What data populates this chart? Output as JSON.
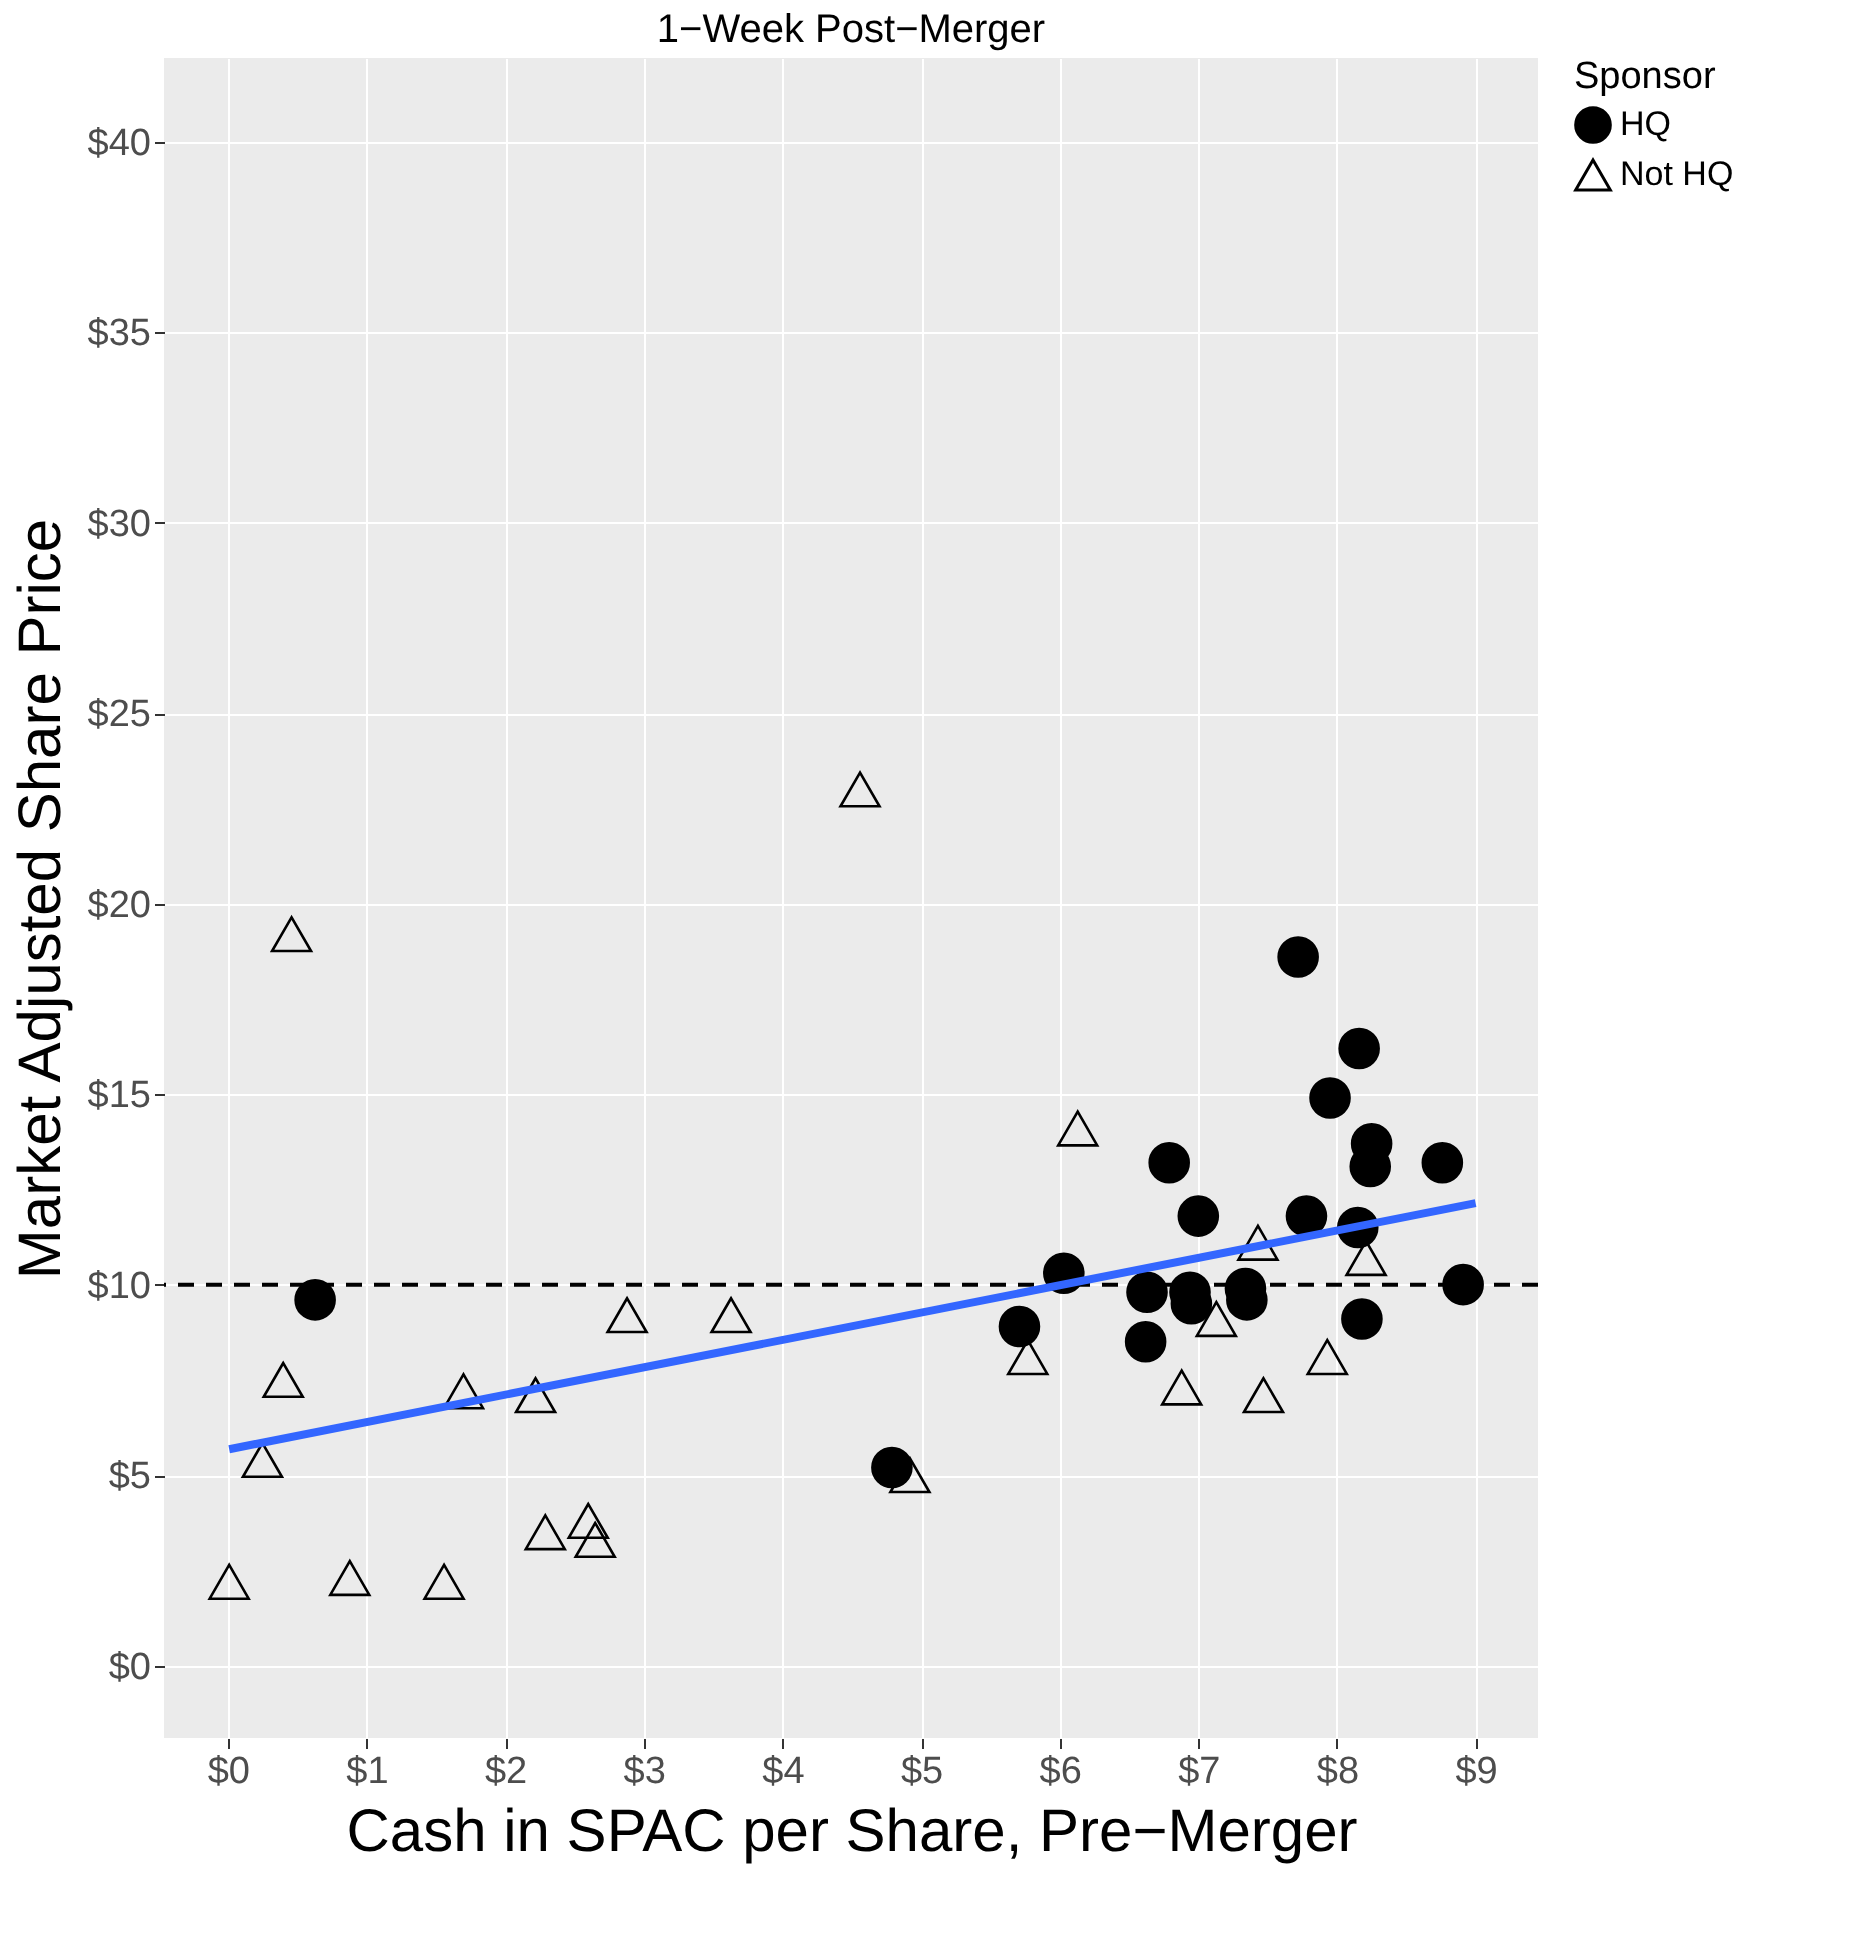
{
  "chart_data": {
    "type": "scatter",
    "title": "1−Week Post−Merger",
    "xlabel": "Cash in SPAC per Share, Pre−Merger",
    "ylabel": "Market Adjusted Share Price",
    "legend_title": "Sponsor",
    "series": [
      {
        "name": "HQ",
        "color": "#000000",
        "marker": "circle",
        "x": [
          0.63,
          4.79,
          5.71,
          6.03,
          6.62,
          6.63,
          6.79,
          6.94,
          6.95,
          7.0,
          7.34,
          7.35,
          7.72,
          7.78,
          7.95,
          8.16,
          8.15,
          8.18,
          8.25,
          8.24,
          8.76,
          8.91
        ],
        "values": [
          9.6,
          5.2,
          8.9,
          10.3,
          8.5,
          9.8,
          13.2,
          9.8,
          9.5,
          11.8,
          9.9,
          9.6,
          18.6,
          11.8,
          14.9,
          16.2,
          11.5,
          9.1,
          13.7,
          13.1,
          13.2,
          10.0
        ]
      },
      {
        "name": "Not HQ",
        "color": "#000000",
        "marker": "triangle",
        "x": [
          0.01,
          0.25,
          0.4,
          0.46,
          0.88,
          1.56,
          1.7,
          2.22,
          2.29,
          2.6,
          2.65,
          2.88,
          3.63,
          4.56,
          4.92,
          5.77,
          6.13,
          6.88,
          7.13,
          7.43,
          7.47,
          7.93,
          8.21
        ],
        "values": [
          2.2,
          5.4,
          7.5,
          19.2,
          2.3,
          2.2,
          7.2,
          7.1,
          3.5,
          3.8,
          3.3,
          9.2,
          9.2,
          23.0,
          5.0,
          8.1,
          14.1,
          7.3,
          9.1,
          11.1,
          7.1,
          8.1,
          10.7
        ]
      },
      {
        "type": "line",
        "color": "#3366ff",
        "x": [
          0.01,
          9.0
        ],
        "values": [
          5.68,
          12.14
        ]
      }
    ],
    "ref_lines": [
      {
        "axis": "y",
        "value": 10,
        "color": "#000000",
        "line_style": "dashed"
      }
    ],
    "xlim": [
      -0.46,
      9.45
    ],
    "ylim": [
      -1.9,
      42.2
    ],
    "xticks": [
      {
        "value": 0,
        "label": "$0"
      },
      {
        "value": 1,
        "label": "$1"
      },
      {
        "value": 2,
        "label": "$2"
      },
      {
        "value": 3,
        "label": "$3"
      },
      {
        "value": 4,
        "label": "$4"
      },
      {
        "value": 5,
        "label": "$5"
      },
      {
        "value": 6,
        "label": "$6"
      },
      {
        "value": 7,
        "label": "$7"
      },
      {
        "value": 8,
        "label": "$8"
      },
      {
        "value": 9,
        "label": "$9"
      }
    ],
    "yticks": [
      {
        "value": 0,
        "label": "$0"
      },
      {
        "value": 5,
        "label": "$5"
      },
      {
        "value": 10,
        "label": "$10"
      },
      {
        "value": 15,
        "label": "$15"
      },
      {
        "value": 20,
        "label": "$20"
      },
      {
        "value": 25,
        "label": "$25"
      },
      {
        "value": 30,
        "label": "$30"
      },
      {
        "value": 35,
        "label": "$35"
      },
      {
        "value": 40,
        "label": "$40"
      }
    ],
    "grid": true,
    "legend": "right"
  }
}
